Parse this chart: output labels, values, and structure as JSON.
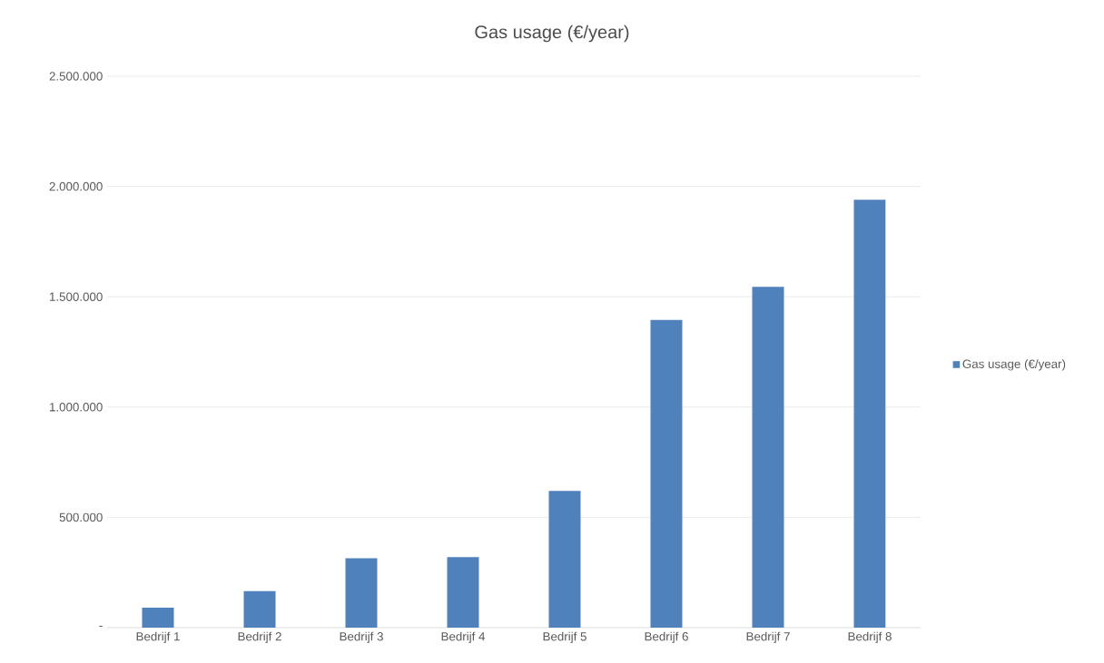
{
  "chart_data": {
    "type": "bar",
    "title": "Gas usage (€/year)",
    "categories": [
      "Bedrijf 1",
      "Bedrijf 2",
      "Bedrijf 3",
      "Bedrijf 4",
      "Bedrijf 5",
      "Bedrijf 6",
      "Bedrijf 7",
      "Bedrijf 8"
    ],
    "series": [
      {
        "name": "Gas usage (€/year)",
        "color": "#4f81bd",
        "values": [
          90000,
          165000,
          315000,
          320000,
          620000,
          1395000,
          1545000,
          1940000
        ]
      }
    ],
    "ylim": [
      0,
      2500000
    ],
    "yticks": [
      {
        "value": 0,
        "label": "-"
      },
      {
        "value": 500000,
        "label": "500.000"
      },
      {
        "value": 1000000,
        "label": "1.000.000"
      },
      {
        "value": 1500000,
        "label": "1.500.000"
      },
      {
        "value": 2000000,
        "label": "2.000.000"
      },
      {
        "value": 2500000,
        "label": "2.500.000"
      }
    ],
    "grid": "y",
    "legend": "right"
  }
}
